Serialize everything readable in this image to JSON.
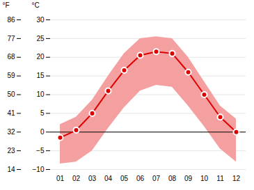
{
  "chart_data": {
    "type": "line",
    "categories": [
      "01",
      "02",
      "03",
      "04",
      "05",
      "06",
      "07",
      "08",
      "09",
      "10",
      "11",
      "12"
    ],
    "values": [
      -1.5,
      0.5,
      5.0,
      11.0,
      16.5,
      20.5,
      21.5,
      21.0,
      16.0,
      10.0,
      4.0,
      0.0
    ],
    "color": "#dd0000",
    "marker": "circle",
    "band": {
      "upper": [
        2.0,
        4.0,
        8.5,
        15.0,
        21.0,
        25.0,
        25.5,
        25.0,
        20.0,
        13.5,
        7.0,
        3.5
      ],
      "lower": [
        -8.5,
        -8.0,
        -5.0,
        1.0,
        6.5,
        11.0,
        12.5,
        12.0,
        7.0,
        1.5,
        -4.5,
        -8.0
      ],
      "color": "#f5a0a0"
    },
    "reference_line": {
      "y": 0,
      "color": "#000000"
    },
    "ylim": [
      -10,
      30
    ],
    "yticks": [
      -10,
      -5,
      0,
      5,
      10,
      15,
      20,
      25,
      30
    ],
    "ylabel": "°C",
    "y2lim": [
      14,
      86
    ],
    "y2ticks": [
      14,
      23,
      32,
      41,
      50,
      59,
      68,
      77,
      86
    ],
    "y2label": "°F",
    "grid": true
  }
}
